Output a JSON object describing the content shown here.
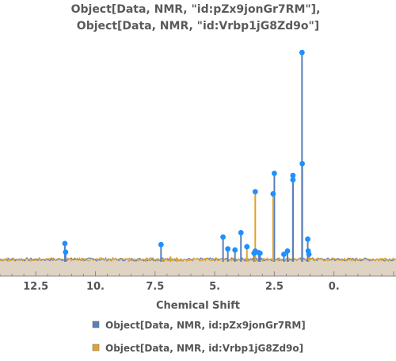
{
  "chart_data": {
    "type": "line",
    "title_lines": [
      "Object[Data, NMR, \"id:pZx9jonGr7RM\"],",
      "Object[Data, NMR, \"id:Vrbp1jG8Zd9o\"]"
    ],
    "xlabel": "Chemical Shift",
    "ylabel": "",
    "x_reversed": true,
    "xlim": [
      14.0,
      -2.6
    ],
    "ylim": [
      0,
      1.0
    ],
    "x_ticks": [
      12.5,
      10.0,
      7.5,
      5.0,
      2.5,
      0.0
    ],
    "x_tick_labels": [
      "12.5",
      "10.",
      "7.5",
      "5.",
      "2.5",
      "0."
    ],
    "grid": false,
    "legend_position": "bottom",
    "baseline_fill_color": "#dfd3c3",
    "peak_marker_color": "#1e90ff",
    "series": [
      {
        "name": "Object[Data, NMR, id:pZx9jonGr7RM]",
        "color": "#5b7fba",
        "peaks": [
          {
            "x": 11.28,
            "y": 0.085
          },
          {
            "x": 11.25,
            "y": 0.045
          },
          {
            "x": 7.25,
            "y": 0.08
          },
          {
            "x": 7.18,
            "y": 0.02
          },
          {
            "x": 4.65,
            "y": 0.115
          },
          {
            "x": 4.45,
            "y": 0.06
          },
          {
            "x": 4.15,
            "y": 0.055
          },
          {
            "x": 3.9,
            "y": 0.135
          },
          {
            "x": 3.35,
            "y": 0.04
          },
          {
            "x": 3.3,
            "y": 0.05
          },
          {
            "x": 3.15,
            "y": 0.042
          },
          {
            "x": 3.1,
            "y": 0.04
          },
          {
            "x": 2.5,
            "y": 0.41
          },
          {
            "x": 2.1,
            "y": 0.035
          },
          {
            "x": 1.95,
            "y": 0.05
          },
          {
            "x": 1.72,
            "y": 0.38
          },
          {
            "x": 1.72,
            "y": 0.4
          },
          {
            "x": 1.34,
            "y": 0.97
          },
          {
            "x": 1.33,
            "y": 0.455
          },
          {
            "x": 1.1,
            "y": 0.105
          },
          {
            "x": 1.08,
            "y": 0.05
          },
          {
            "x": 1.05,
            "y": 0.035
          }
        ]
      },
      {
        "name": "Object[Data, NMR, id:Vrbp1jG8Zd9o]",
        "color": "#e3a32b",
        "peaks": [
          {
            "x": 8.6,
            "y": 0.01
          },
          {
            "x": 7.9,
            "y": 0.012
          },
          {
            "x": 7.2,
            "y": 0.015
          },
          {
            "x": 6.85,
            "y": 0.025
          },
          {
            "x": 6.6,
            "y": 0.02
          },
          {
            "x": 3.65,
            "y": 0.07
          },
          {
            "x": 3.3,
            "y": 0.325
          },
          {
            "x": 2.55,
            "y": 0.315
          },
          {
            "x": 1.05,
            "y": 0.02
          }
        ]
      }
    ]
  }
}
